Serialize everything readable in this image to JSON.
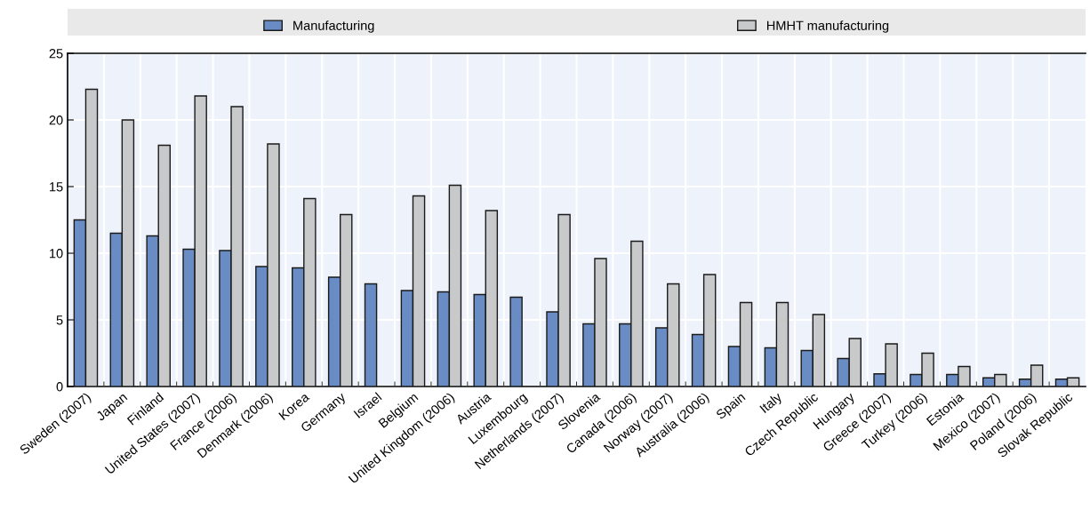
{
  "chart_data": {
    "type": "bar",
    "categories": [
      "Sweden (2007)",
      "Japan",
      "Finland",
      "United States (2007)",
      "France (2006)",
      "Denmark (2006)",
      "Korea",
      "Germany",
      "Israel",
      "Belgium",
      "United Kingdom (2006)",
      "Austria",
      "Luxembourg",
      "Netherlands (2007)",
      "Slovenia",
      "Canada (2006)",
      "Norway (2007)",
      "Australia (2006)",
      "Spain",
      "Italy",
      "Czech Republic",
      "Hungary",
      "Greece (2007)",
      "Turkey (2006)",
      "Estonia",
      "Mexico (2007)",
      "Poland (2006)",
      "Slovak Republic"
    ],
    "series": [
      {
        "name": "Manufacturing",
        "color": "#6a8cc4",
        "values": [
          12.5,
          11.5,
          11.3,
          10.3,
          10.2,
          9.0,
          8.9,
          8.2,
          7.7,
          7.2,
          7.1,
          6.9,
          6.7,
          5.6,
          4.7,
          4.7,
          4.4,
          3.9,
          3.0,
          2.9,
          2.7,
          2.1,
          0.95,
          0.9,
          0.9,
          0.65,
          0.55,
          0.55
        ]
      },
      {
        "name": "HMHT manufacturing",
        "color": "#c8c9cb",
        "values": [
          22.3,
          20.0,
          18.1,
          21.8,
          21.0,
          18.2,
          14.1,
          12.9,
          null,
          14.3,
          15.1,
          13.2,
          null,
          12.9,
          9.6,
          10.9,
          7.7,
          8.4,
          6.3,
          6.3,
          5.4,
          3.6,
          3.2,
          2.5,
          1.5,
          0.9,
          1.6,
          0.65
        ]
      }
    ],
    "ylim": [
      0,
      25
    ],
    "yticks": [
      0,
      5,
      10,
      15,
      20,
      25
    ],
    "grid": true,
    "legend": "top"
  }
}
